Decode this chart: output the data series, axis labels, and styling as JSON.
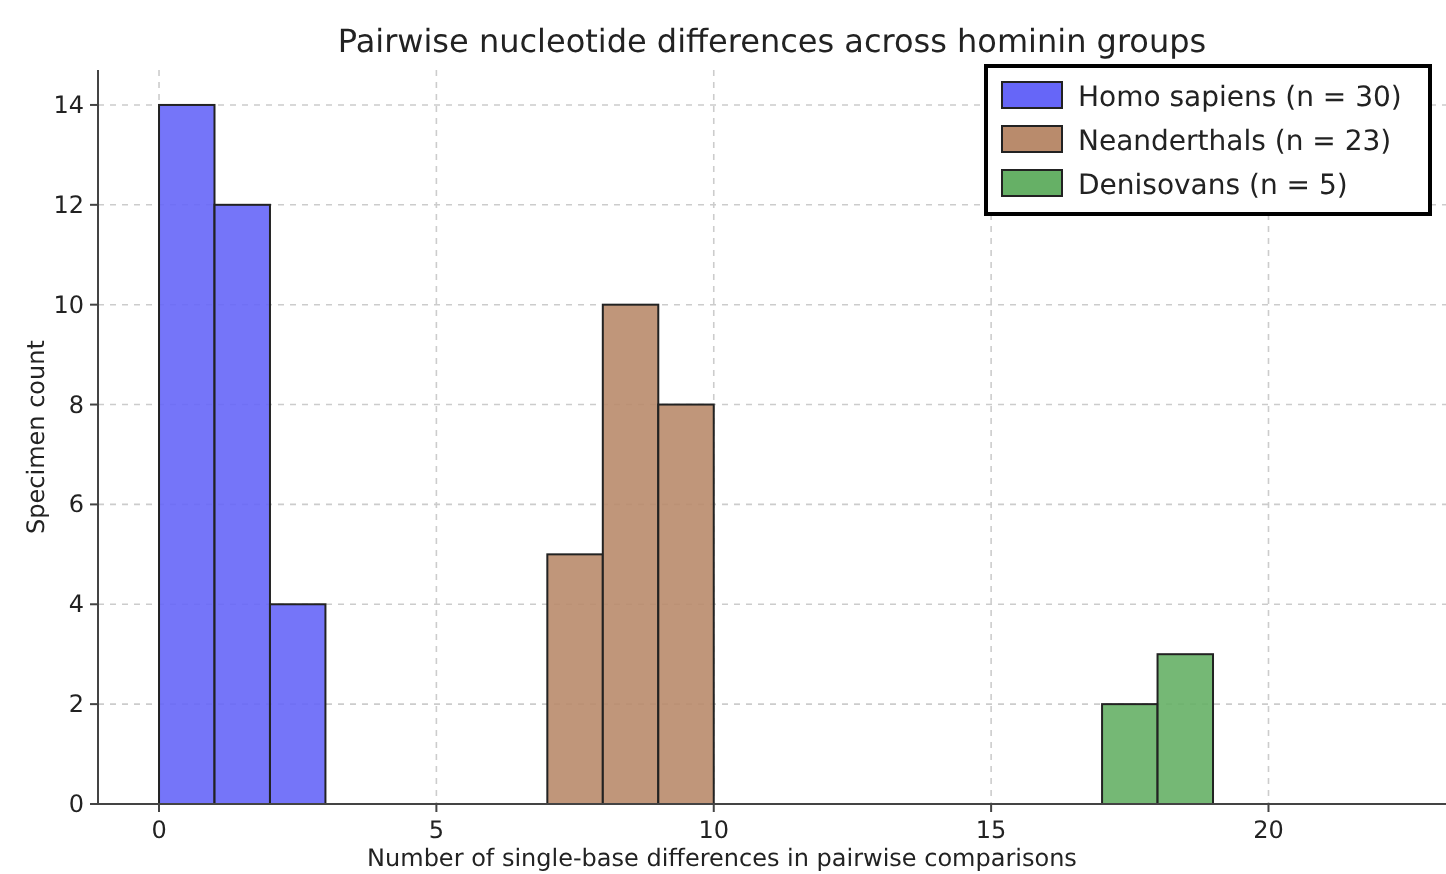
{
  "chart_data": {
    "type": "histogram",
    "title": "Pairwise nucleotide differences across hominin groups",
    "xlabel": "Number of single-base differences in pairwise comparisons",
    "ylabel": "Specimen count",
    "bins": [
      0,
      1,
      2,
      3,
      4,
      5,
      6,
      7,
      8,
      9,
      10,
      11,
      12,
      13,
      14,
      15,
      16,
      17,
      18,
      19
    ],
    "series": [
      {
        "name": "Homo sapiens (n = 30)",
        "color": "#6666f8",
        "values": [
          14,
          12,
          4,
          null,
          null,
          null,
          null,
          null,
          null,
          null,
          null,
          null,
          null,
          null,
          null,
          null,
          null,
          null,
          null
        ]
      },
      {
        "name": "Neanderthals (n = 23)",
        "color": "#b98b6c",
        "values": [
          null,
          null,
          null,
          null,
          null,
          null,
          null,
          5,
          10,
          8,
          null,
          null,
          null,
          null,
          null,
          null,
          null,
          null,
          null
        ]
      },
      {
        "name": "Denisovans (n = 5)",
        "color": "#66b066",
        "values": [
          null,
          null,
          null,
          null,
          null,
          null,
          null,
          null,
          null,
          null,
          null,
          null,
          null,
          null,
          null,
          null,
          null,
          2,
          3
        ]
      }
    ],
    "xlim": [
      -1.1,
      23.2
    ],
    "xticks": [
      0,
      5,
      10,
      15,
      20
    ],
    "ylim": [
      0,
      14.7
    ],
    "yticks": [
      0,
      2,
      4,
      6,
      8,
      10,
      12,
      14
    ],
    "grid": true,
    "legend": "top right"
  }
}
